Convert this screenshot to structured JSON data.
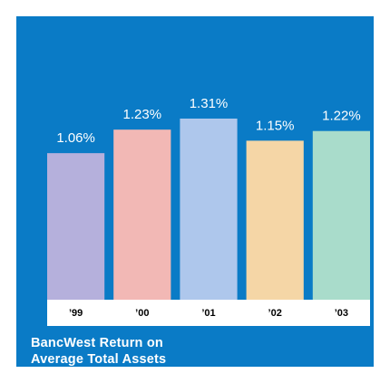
{
  "chart_data": {
    "type": "bar",
    "title": "BancWest Return on Average Total Assets",
    "categories": [
      "’99",
      "’00",
      "’01",
      "’02",
      "’03"
    ],
    "values": [
      1.06,
      1.23,
      1.31,
      1.15,
      1.22
    ],
    "value_labels": [
      "1.06%",
      "1.23%",
      "1.31%",
      "1.15%",
      "1.22%"
    ],
    "colors": [
      "#b5b0dc",
      "#f2b8b5",
      "#aec7ec",
      "#f5d6a6",
      "#a9dccb"
    ]
  }
}
